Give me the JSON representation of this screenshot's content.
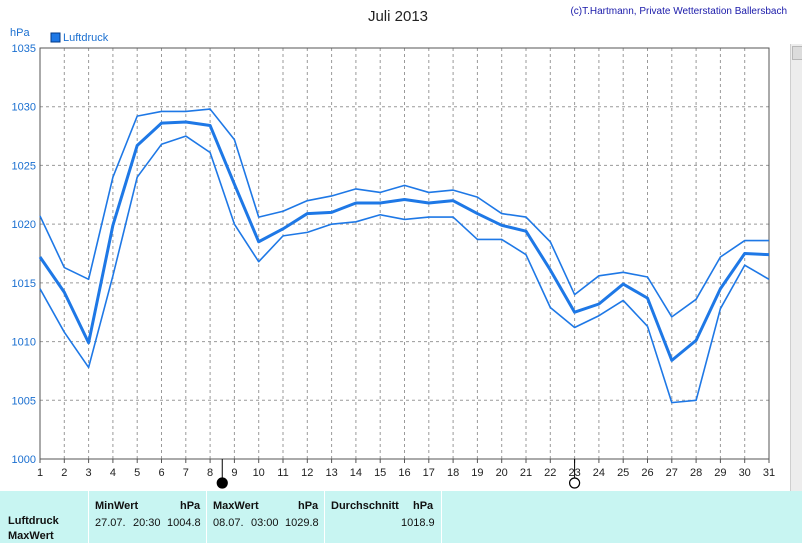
{
  "chart_data": {
    "type": "line",
    "title": "Juli 2013",
    "credit": "(c)T.Hartmann, Private Wetterstation Ballersbach",
    "ylabel": "hPa",
    "legend": {
      "label": "Luftdruck",
      "placement": "top-left"
    },
    "ylim": [
      1000,
      1035
    ],
    "yticks": [
      "1000",
      "1005",
      "1010",
      "1015",
      "1020",
      "1025",
      "1030",
      "1035"
    ],
    "x": [
      "1",
      "2",
      "3",
      "4",
      "5",
      "6",
      "7",
      "8",
      "9",
      "10",
      "11",
      "12",
      "13",
      "14",
      "15",
      "16",
      "17",
      "18",
      "19",
      "20",
      "21",
      "22",
      "23",
      "24",
      "25",
      "26",
      "27",
      "28",
      "29",
      "30",
      "31"
    ],
    "grid": true,
    "series": [
      {
        "role": "max",
        "values": [
          1020.7,
          1016.3,
          1015.3,
          1024.0,
          1029.2,
          1029.6,
          1029.6,
          1029.8,
          1027.2,
          1020.6,
          1021.1,
          1022.0,
          1022.4,
          1023.0,
          1022.7,
          1023.3,
          1022.7,
          1022.9,
          1022.3,
          1020.9,
          1020.6,
          1018.5,
          1014.0,
          1015.6,
          1015.9,
          1015.5,
          1012.1,
          1013.6,
          1017.2,
          1018.6,
          1018.6
        ]
      },
      {
        "role": "avg",
        "values": [
          1017.2,
          1014.2,
          1009.9,
          1019.9,
          1026.7,
          1028.6,
          1028.7,
          1028.4,
          1023.4,
          1018.5,
          1019.6,
          1020.9,
          1021.0,
          1021.8,
          1021.8,
          1022.1,
          1021.8,
          1022.0,
          1020.9,
          1019.9,
          1019.4,
          1016.1,
          1012.5,
          1013.2,
          1014.9,
          1013.7,
          1008.4,
          1010.1,
          1014.5,
          1017.5,
          1017.4
        ]
      },
      {
        "role": "min",
        "values": [
          1014.5,
          1010.8,
          1007.8,
          1015.6,
          1024.0,
          1026.8,
          1027.5,
          1026.1,
          1020.0,
          1016.8,
          1019.0,
          1019.3,
          1020.0,
          1020.2,
          1020.8,
          1020.4,
          1020.6,
          1020.6,
          1018.7,
          1018.7,
          1017.4,
          1012.9,
          1011.2,
          1012.2,
          1013.5,
          1011.3,
          1004.8,
          1005.0,
          1012.8,
          1016.5,
          1015.3
        ]
      }
    ],
    "markers": [
      {
        "position": "8.5",
        "symbol": "full-moon",
        "color": "#000000"
      },
      {
        "position": "23",
        "symbol": "new-moon",
        "color": "#000000"
      }
    ]
  },
  "stats": {
    "row_labels": [
      "Luftdruck",
      "MaxWert"
    ],
    "min": {
      "header": "MinWert",
      "unit": "hPa",
      "date": "27.07.",
      "time": "20:30",
      "value": "1004.8"
    },
    "max": {
      "header": "MaxWert",
      "unit": "hPa",
      "date": "08.07.",
      "time": "03:00",
      "value": "1029.8"
    },
    "avg": {
      "header": "Durchschnitt",
      "unit": "hPa",
      "value": "1018.9"
    }
  },
  "colors": {
    "line": "#1e78e6",
    "grid": "#9a9a9a",
    "stats_bg": "#c8f5f2",
    "axis_text": "#1a6fd0"
  }
}
